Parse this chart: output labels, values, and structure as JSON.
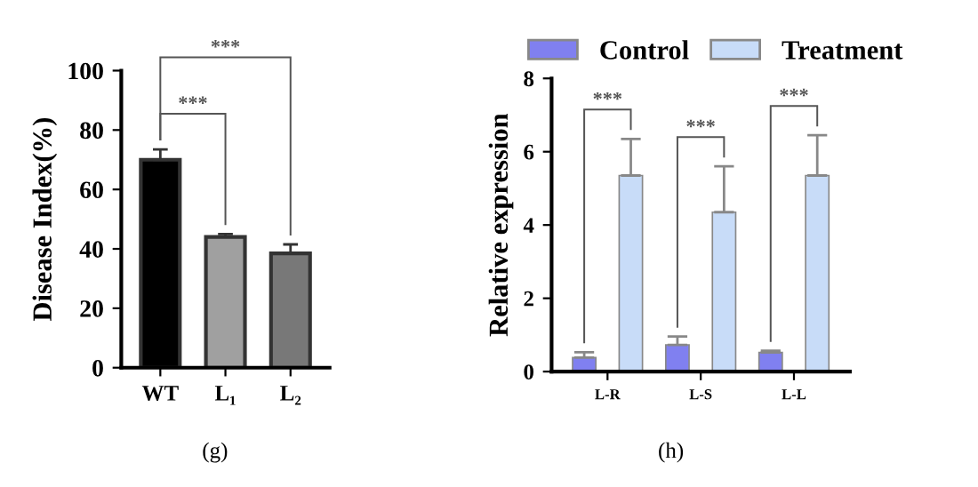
{
  "chart_data": [
    {
      "type": "bar",
      "ylabel": "Disease Index(%)",
      "categories": [
        "WT",
        "L₁",
        "L₂"
      ],
      "values": [
        70,
        44,
        38.5
      ],
      "colors": [
        "#000000",
        "#a0a0a0",
        "#787878"
      ],
      "errors": [
        [
          70,
          73.5
        ],
        [
          44,
          45
        ],
        [
          38.5,
          41.5
        ]
      ],
      "ylim": [
        0,
        100
      ],
      "yticks": [
        0,
        20,
        40,
        60,
        80,
        100
      ],
      "grid": false,
      "legend": false,
      "annotations": [
        "***",
        "***",
        "(g)"
      ]
    },
    {
      "type": "bar",
      "ylabel": "Relative expression",
      "categories": [
        "L-R",
        "L-S",
        "L-L"
      ],
      "series": [
        {
          "name": "Control",
          "color": "#8080f0",
          "values": [
            0.38,
            0.73,
            0.52
          ],
          "errors": [
            [
              0.38,
              0.53
            ],
            [
              0.73,
              0.96
            ],
            [
              0.52,
              0.57
            ]
          ]
        },
        {
          "name": "Treatment",
          "color": "#c8dcf8",
          "values": [
            5.35,
            4.35,
            5.35
          ],
          "errors": [
            [
              5.35,
              6.35
            ],
            [
              4.35,
              5.6
            ],
            [
              5.35,
              6.45
            ]
          ]
        }
      ],
      "ylim": [
        0,
        8
      ],
      "yticks": [
        0,
        2,
        4,
        6,
        8
      ],
      "grid": false,
      "legend": "top",
      "annotations": [
        "***",
        "***",
        "***",
        "(h)"
      ]
    }
  ]
}
